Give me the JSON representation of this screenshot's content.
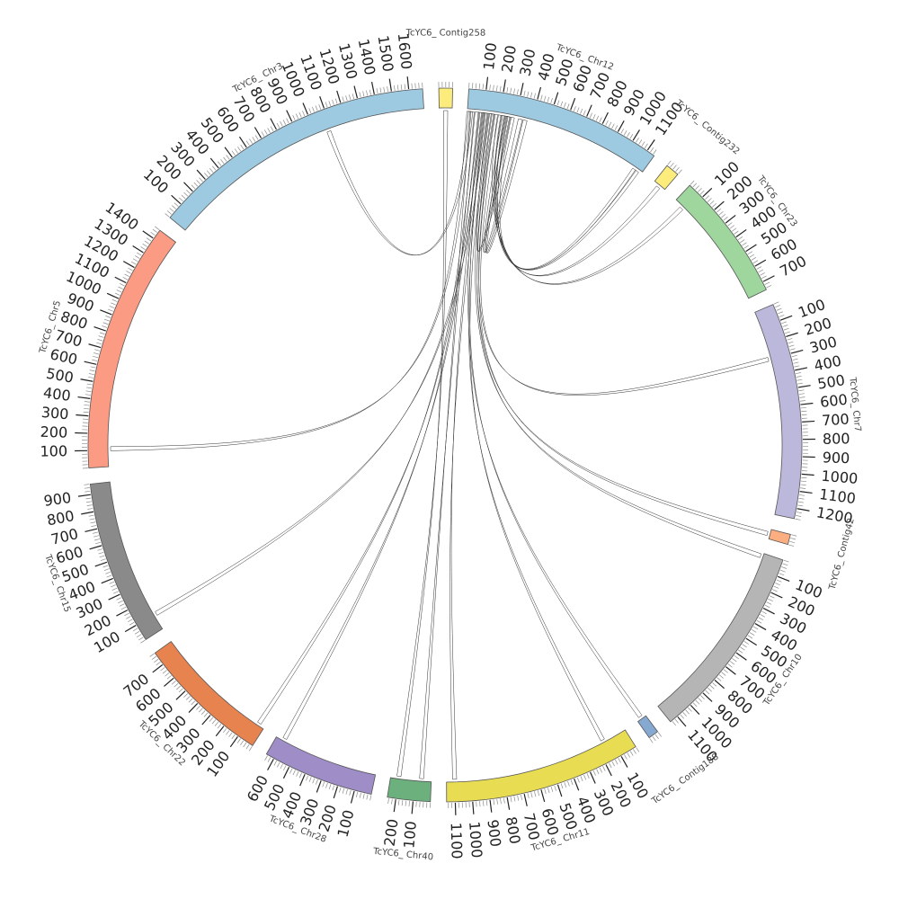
{
  "chromosomes": [
    {
      "id": "Contig258",
      "label": "TcYC6_ Contig258",
      "length": 80,
      "color": "#fbec7c",
      "ticks": []
    },
    {
      "id": "Chr12",
      "label": "TcYC6_ Chr12",
      "length": 1150,
      "color": "#9ecae1",
      "ticks": [
        "100",
        "200",
        "300",
        "400",
        "500",
        "600",
        "700",
        "800",
        "900",
        "1000",
        "1100"
      ]
    },
    {
      "id": "Contig232",
      "label": "TcYC6_ Contig232",
      "length": 80,
      "color": "#fbec7c",
      "ticks": []
    },
    {
      "id": "Chr23",
      "label": "TcYC6_ Chr23",
      "length": 750,
      "color": "#9fd69e",
      "ticks": [
        "100",
        "200",
        "300",
        "400",
        "500",
        "600",
        "700"
      ]
    },
    {
      "id": "Chr7",
      "label": "TcYC6_ Chr7",
      "length": 1260,
      "color": "#bcb8db",
      "ticks": [
        "100",
        "200",
        "300",
        "400",
        "500",
        "600",
        "700",
        "800",
        "900",
        "1000",
        "1100",
        "1200"
      ]
    },
    {
      "id": "Contig42",
      "label": "TcYC6_ Contig42",
      "length": 60,
      "color": "#fdae80",
      "ticks": []
    },
    {
      "id": "Chr10",
      "label": "TcYC6_ Chr10",
      "length": 1150,
      "color": "#b5b5b5",
      "ticks": [
        "100",
        "200",
        "300",
        "400",
        "500",
        "600",
        "700",
        "800",
        "900",
        "1000",
        "1100"
      ]
    },
    {
      "id": "Contig188",
      "label": "TcYC6_ Contig188",
      "length": 60,
      "color": "#86a9d1",
      "ticks": []
    },
    {
      "id": "Chr11",
      "label": "TcYC6_ Chr11",
      "length": 1150,
      "color": "#e8dc52",
      "ticks": [
        "100",
        "200",
        "300",
        "400",
        "500",
        "600",
        "700",
        "800",
        "900",
        "1000",
        "1100"
      ]
    },
    {
      "id": "Chr40",
      "label": "TcYC6_ Chr40",
      "length": 250,
      "color": "#6cb07e",
      "ticks": [
        "100",
        "200"
      ]
    },
    {
      "id": "Chr28",
      "label": "TcYC6_ Chr28",
      "length": 650,
      "color": "#9e8dc7",
      "ticks": [
        "100",
        "200",
        "300",
        "400",
        "500",
        "600"
      ]
    },
    {
      "id": "Chr22",
      "label": "TcYC6_ Chr22",
      "length": 780,
      "color": "#e6834f",
      "ticks": [
        "100",
        "200",
        "300",
        "400",
        "500",
        "600",
        "700"
      ]
    },
    {
      "id": "Chr15",
      "label": "TcYC6_ Chr15",
      "length": 960,
      "color": "#8a8a8a",
      "ticks": [
        "100",
        "200",
        "300",
        "400",
        "500",
        "600",
        "700",
        "800",
        "900"
      ]
    },
    {
      "id": "Chr5",
      "label": "TcYC6_ Chr5",
      "length": 1460,
      "color": "#fb9b83",
      "ticks": [
        "100",
        "200",
        "300",
        "400",
        "500",
        "600",
        "700",
        "800",
        "900",
        "1000",
        "1100",
        "1200",
        "1300",
        "1400"
      ]
    },
    {
      "id": "Chr3",
      "label": "TcYC6_ Chr3",
      "length": 1680,
      "color": "#9ecae1",
      "ticks": [
        "100",
        "200",
        "300",
        "400",
        "500",
        "600",
        "700",
        "800",
        "900",
        "1000",
        "1100",
        "1200",
        "1300",
        "1400",
        "1500",
        "1600"
      ]
    }
  ],
  "links": [
    {
      "from": "Contig258",
      "from_pos": 40,
      "to": "Chr40",
      "to_pos": 200,
      "color": "#8ea3cf"
    },
    {
      "from": "Chr12",
      "from_pos": 30,
      "to": "Chr40",
      "to_pos": 60,
      "color": "#7f95c8"
    },
    {
      "from": "Chr12",
      "from_pos": 60,
      "to": "Chr22",
      "to_pos": 40,
      "color": "#e07a45"
    },
    {
      "from": "Chr12",
      "from_pos": 80,
      "to": "Chr28",
      "to_pos": 600,
      "color": "#e07a45"
    },
    {
      "from": "Chr12",
      "from_pos": 100,
      "to": "Chr11",
      "to_pos": 1100,
      "color": "#f3e43a"
    },
    {
      "from": "Chr12",
      "from_pos": 120,
      "to": "Chr11",
      "to_pos": 150,
      "color": "#6db86a"
    },
    {
      "from": "Chr12",
      "from_pos": 90,
      "to": "Contig188",
      "to_pos": 30,
      "color": "#e8dc52"
    },
    {
      "from": "Chr12",
      "from_pos": 140,
      "to": "Chr10",
      "to_pos": 20,
      "color": "#5b86c2"
    },
    {
      "from": "Chr12",
      "from_pos": 160,
      "to": "Contig42",
      "to_pos": 30,
      "color": "#7aa0d0"
    },
    {
      "from": "Chr12",
      "from_pos": 180,
      "to": "Chr7",
      "to_pos": 300,
      "color": "#f08a50"
    },
    {
      "from": "Chr12",
      "from_pos": 200,
      "to": "Chr23",
      "to_pos": 60,
      "color": "#9b8fd0"
    },
    {
      "from": "Chr12",
      "from_pos": 220,
      "to": "Contig232",
      "to_pos": 40,
      "color": "#6fa5d6"
    },
    {
      "from": "Chr12",
      "from_pos": 240,
      "to": "Chr12",
      "to_pos": 1120,
      "color": "#e07a45"
    },
    {
      "from": "Chr12",
      "from_pos": 260,
      "to": "Chr12",
      "to_pos": 1100,
      "color": "#e07a45"
    },
    {
      "from": "Chr12",
      "from_pos": 20,
      "to": "Chr3",
      "to_pos": 1080,
      "color": "#6db86a"
    },
    {
      "from": "Chr12",
      "from_pos": 10,
      "to": "Chr5",
      "to_pos": 110,
      "color": "#e8dc52"
    },
    {
      "from": "Chr12",
      "from_pos": 110,
      "to": "Chr15",
      "to_pos": 100,
      "color": "#7aa7d8"
    },
    {
      "from": "Chr12",
      "from_pos": 230,
      "to": "Chr12",
      "to_pos": 330,
      "color": "#6db86a"
    },
    {
      "from": "Chr12",
      "from_pos": 250,
      "to": "Chr12",
      "to_pos": 360,
      "color": "#6db86a"
    },
    {
      "from": "Chr12",
      "from_pos": 150,
      "to": "Chr12",
      "to_pos": 280,
      "color": "#e07a45"
    }
  ]
}
